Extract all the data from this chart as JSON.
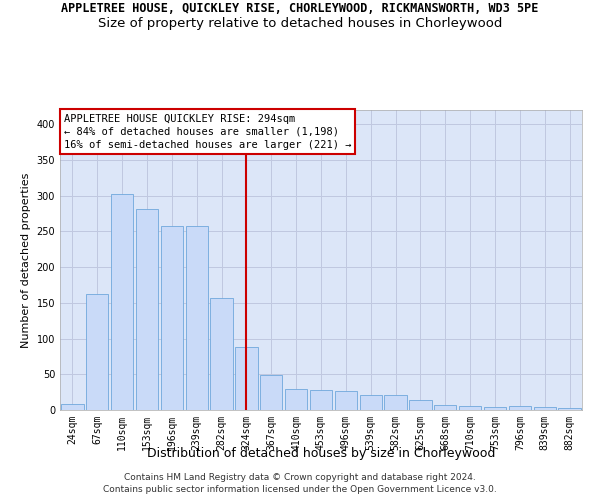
{
  "title": "APPLETREE HOUSE, QUICKLEY RISE, CHORLEYWOOD, RICKMANSWORTH, WD3 5PE",
  "subtitle": "Size of property relative to detached houses in Chorleywood",
  "xlabel": "Distribution of detached houses by size in Chorleywood",
  "ylabel": "Number of detached properties",
  "categories": [
    "24sqm",
    "67sqm",
    "110sqm",
    "153sqm",
    "196sqm",
    "239sqm",
    "282sqm",
    "324sqm",
    "367sqm",
    "410sqm",
    "453sqm",
    "496sqm",
    "539sqm",
    "582sqm",
    "625sqm",
    "668sqm",
    "710sqm",
    "753sqm",
    "796sqm",
    "839sqm",
    "882sqm"
  ],
  "values": [
    8,
    163,
    302,
    281,
    258,
    258,
    157,
    88,
    49,
    30,
    28,
    26,
    21,
    21,
    14,
    7,
    5,
    4,
    5,
    4,
    3
  ],
  "bar_color": "#c9daf8",
  "bar_edge_color": "#6fa8dc",
  "vline_index": 7,
  "vline_color": "#cc0000",
  "annotation_title": "APPLETREE HOUSE QUICKLEY RISE: 294sqm",
  "annotation_line1": "← 84% of detached houses are smaller (1,198)",
  "annotation_line2": "16% of semi-detached houses are larger (221) →",
  "annotation_box_facecolor": "#ffffff",
  "annotation_box_edgecolor": "#cc0000",
  "ylim": [
    0,
    420
  ],
  "yticks": [
    0,
    50,
    100,
    150,
    200,
    250,
    300,
    350,
    400
  ],
  "grid_color": "#c0c8e0",
  "plot_bgcolor": "#dce6f8",
  "fig_bgcolor": "#ffffff",
  "footer_line1": "Contains HM Land Registry data © Crown copyright and database right 2024.",
  "footer_line2": "Contains public sector information licensed under the Open Government Licence v3.0.",
  "title_fontsize": 8.5,
  "subtitle_fontsize": 9.5,
  "xlabel_fontsize": 9,
  "ylabel_fontsize": 8,
  "tick_fontsize": 7,
  "annotation_fontsize": 7.5,
  "footer_fontsize": 6.5
}
